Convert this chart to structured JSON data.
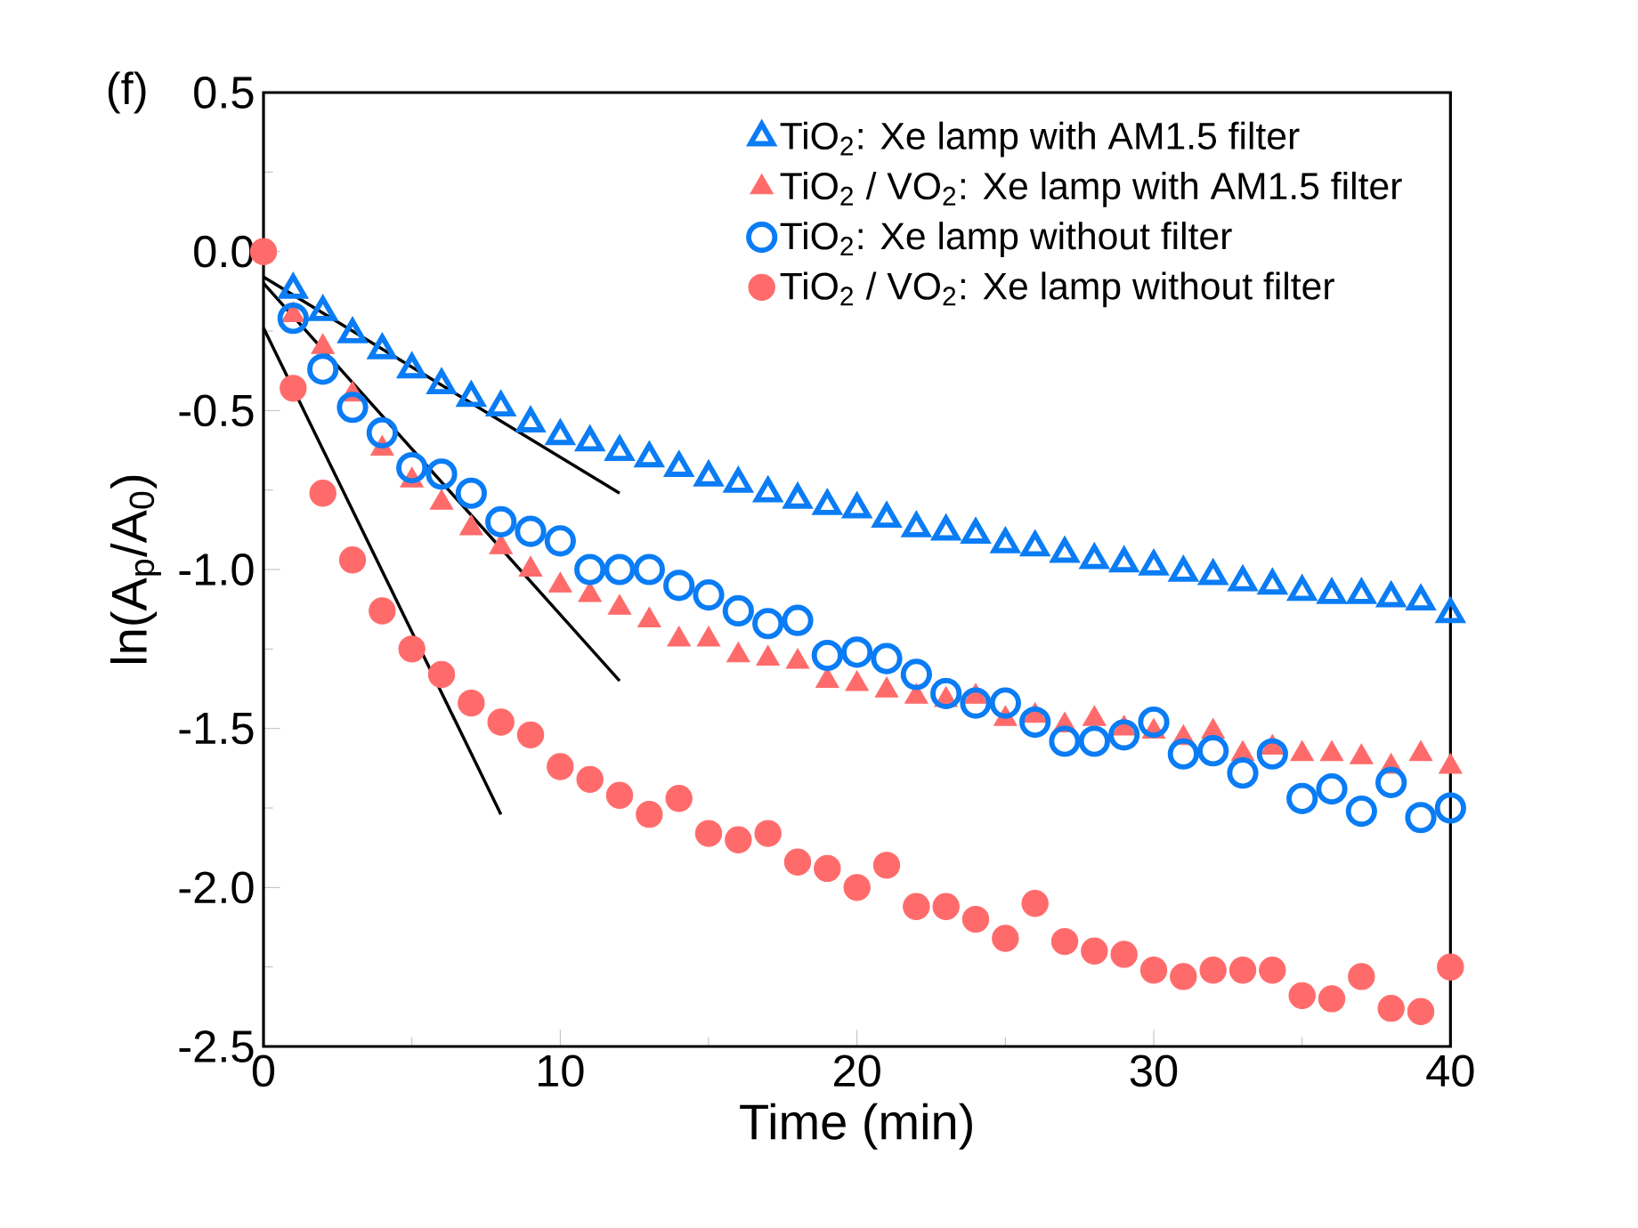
{
  "chart_data": {
    "type": "scatter",
    "xlabel": "Time (min)",
    "ylabel": "ln(A$_{p}$/A$_{0}$)",
    "annotations": [
      "(f)"
    ],
    "xlim": [
      0,
      40
    ],
    "ylim": [
      -2.5,
      0.5
    ],
    "xticks": [
      0,
      10,
      20,
      30,
      40
    ],
    "yticks": [
      {
        "value": 0.5,
        "label": "0.5"
      },
      {
        "value": 0,
        "label": "0.0"
      },
      {
        "value": -0.5,
        "label": "-0.5"
      },
      {
        "value": -1,
        "label": "-1.0"
      },
      {
        "value": -1.5,
        "label": "-1.5"
      },
      {
        "value": -2,
        "label": "-2.0"
      },
      {
        "value": -2.5,
        "label": "-2.5"
      }
    ],
    "legend": "top right",
    "grid": false,
    "x": [
      0,
      1,
      2,
      3,
      4,
      5,
      6,
      7,
      8,
      9,
      10,
      11,
      12,
      13,
      14,
      15,
      16,
      17,
      18,
      19,
      20,
      21,
      22,
      23,
      24,
      25,
      26,
      27,
      28,
      29,
      30,
      31,
      32,
      33,
      34,
      35,
      36,
      37,
      38,
      39,
      40
    ],
    "series": [
      {
        "name": "TiO$_{2}$: Xe lamp with AM1.5 filter",
        "color": "#0a7cf5",
        "marker": "triangle",
        "values": [
          null,
          -0.12,
          -0.19,
          -0.26,
          -0.31,
          -0.37,
          -0.42,
          -0.46,
          -0.49,
          -0.54,
          -0.58,
          -0.6,
          -0.63,
          -0.65,
          -0.68,
          -0.71,
          -0.73,
          -0.76,
          -0.78,
          -0.8,
          -0.81,
          -0.84,
          -0.87,
          -0.88,
          -0.89,
          -0.92,
          -0.93,
          -0.95,
          -0.97,
          -0.98,
          -0.99,
          -1.01,
          -1.02,
          -1.04,
          -1.05,
          -1.07,
          -1.08,
          -1.08,
          -1.09,
          -1.1,
          -1.14
        ]
      },
      {
        "name": "TiO$_{2}$ / VO$_{2}$: Xe lamp with AM1.5 filter",
        "color": "#ff6b6b",
        "marker": "triangle",
        "values": [
          null,
          -0.2,
          -0.3,
          -0.45,
          -0.62,
          -0.72,
          -0.79,
          -0.87,
          -0.93,
          -1.0,
          -1.05,
          -1.08,
          -1.12,
          -1.16,
          -1.22,
          -1.22,
          -1.27,
          -1.28,
          -1.29,
          -1.35,
          -1.36,
          -1.38,
          -1.4,
          -1.41,
          -1.4,
          -1.47,
          -1.46,
          -1.49,
          -1.47,
          -1.5,
          -1.51,
          -1.53,
          -1.51,
          -1.58,
          -1.56,
          -1.58,
          -1.58,
          -1.59,
          -1.62,
          -1.58,
          -1.62
        ]
      },
      {
        "name": "TiO$_{2}$: Xe lamp without filter",
        "color": "#0a7cf5",
        "marker": "circle",
        "values": [
          null,
          -0.21,
          -0.37,
          -0.49,
          -0.57,
          -0.68,
          -0.7,
          -0.76,
          -0.85,
          -0.88,
          -0.91,
          -1.0,
          -1.0,
          -1.0,
          -1.05,
          -1.08,
          -1.13,
          -1.17,
          -1.16,
          -1.27,
          -1.26,
          -1.28,
          -1.33,
          -1.39,
          -1.42,
          -1.42,
          -1.48,
          -1.54,
          -1.54,
          -1.52,
          -1.48,
          -1.58,
          -1.57,
          -1.64,
          -1.58,
          -1.72,
          -1.69,
          -1.76,
          -1.67,
          -1.78,
          -1.75
        ]
      },
      {
        "name": "TiO$_{2}$ / VO$_{2}$: Xe lamp without filter",
        "color": "#ff6b6b",
        "marker": "circle",
        "values": [
          0,
          -0.43,
          -0.76,
          -0.97,
          -1.13,
          -1.25,
          -1.33,
          -1.42,
          -1.48,
          -1.52,
          -1.62,
          -1.66,
          -1.71,
          -1.77,
          -1.72,
          -1.83,
          -1.85,
          -1.83,
          -1.92,
          -1.94,
          -2.0,
          -1.93,
          -2.06,
          -2.06,
          -2.1,
          -2.16,
          -2.05,
          -2.17,
          -2.2,
          -2.21,
          -2.26,
          -2.28,
          -2.26,
          -2.26,
          -2.26,
          -2.34,
          -2.35,
          -2.28,
          -2.38,
          -2.39,
          -2.25
        ]
      },
      {
        "type": "line",
        "color": "#000000",
        "marker": "none",
        "x": [
          0,
          12
        ],
        "values": [
          -0.08,
          -0.76
        ]
      },
      {
        "type": "line",
        "color": "#000000",
        "marker": "none",
        "x": [
          0,
          12
        ],
        "values": [
          -0.1,
          -1.35
        ]
      },
      {
        "type": "line",
        "color": "#000000",
        "marker": "none",
        "x": [
          0,
          8
        ],
        "values": [
          -0.24,
          -1.77
        ]
      }
    ]
  }
}
